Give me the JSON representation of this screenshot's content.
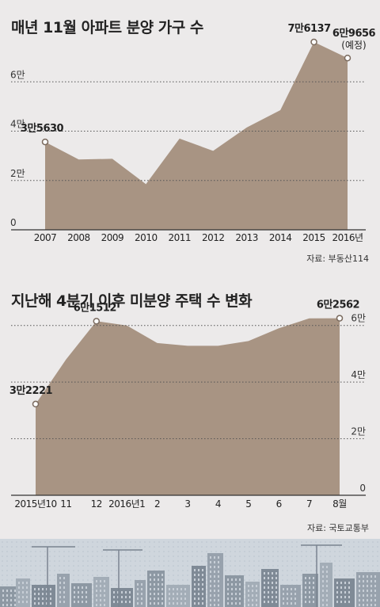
{
  "charts": [
    {
      "title": "매년 11월 아파트 분양 가구 수",
      "source": "자료: 부동산114"
    },
    {
      "title": "지난해 4분기 이후 미분양 주택 수 변화",
      "source": "자료: 국토교통부"
    }
  ],
  "chart_data": [
    {
      "type": "area",
      "title": "매년 11월 아파트 분양 가구 수",
      "x_labels": [
        "2007",
        "2008",
        "2009",
        "2010",
        "2011",
        "2012",
        "2013",
        "2014",
        "2015",
        "2016년"
      ],
      "values": [
        35630,
        28500,
        28800,
        18500,
        37000,
        32000,
        41500,
        48500,
        76137,
        69656
      ],
      "y_ticks": [
        {
          "value": 0,
          "label": "0"
        },
        {
          "value": 20000,
          "label": "2만"
        },
        {
          "value": 40000,
          "label": "4만"
        },
        {
          "value": 60000,
          "label": "6만"
        }
      ],
      "ylim": [
        0,
        80000
      ],
      "y_axis_side": "left",
      "grid": true,
      "callouts": [
        {
          "index": 0,
          "text": "3만5630"
        },
        {
          "index": 8,
          "text": "7만6137"
        },
        {
          "index": 9,
          "text": "6만9656",
          "note": "(예정)"
        }
      ],
      "fill_color": "#a89483",
      "source": "자료: 부동산114"
    },
    {
      "type": "area",
      "title": "지난해 4분기 이후 미분양 주택 수 변화",
      "x_labels": [
        "2015년10",
        "11",
        "12",
        "2016년1",
        "2",
        "3",
        "4",
        "5",
        "6",
        "7",
        "8월"
      ],
      "values": [
        32221,
        48000,
        61512,
        60000,
        53800,
        52800,
        52800,
        54500,
        59000,
        62500,
        62562
      ],
      "y_ticks": [
        {
          "value": 0,
          "label": "0"
        },
        {
          "value": 20000,
          "label": "2만"
        },
        {
          "value": 40000,
          "label": "4만"
        },
        {
          "value": 60000,
          "label": "6만"
        }
      ],
      "ylim": [
        0,
        70000
      ],
      "y_axis_side": "right",
      "grid": true,
      "callouts": [
        {
          "index": 0,
          "text": "3만2221"
        },
        {
          "index": 2,
          "text": "6만1512"
        },
        {
          "index": 10,
          "text": "6만2562"
        }
      ],
      "fill_color": "#a89483",
      "source": "자료: 국토교통부"
    }
  ]
}
